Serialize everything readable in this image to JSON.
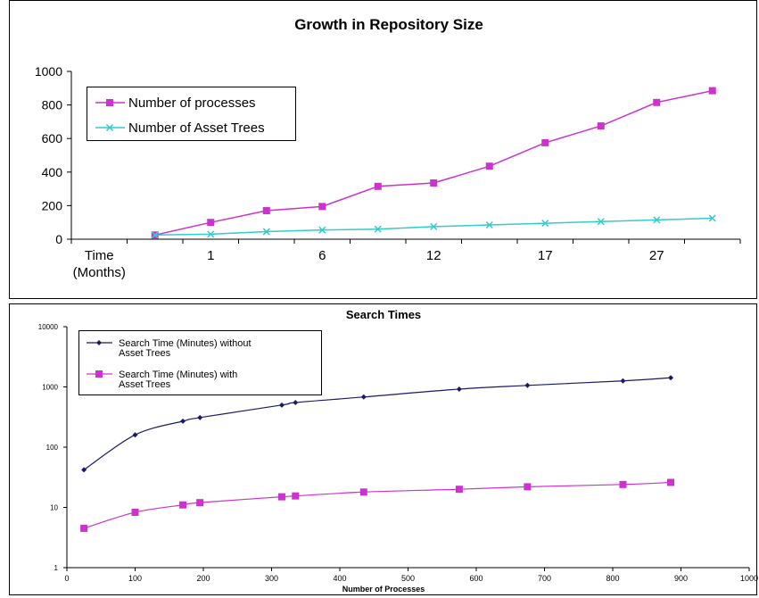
{
  "chart_data": [
    {
      "type": "line",
      "title": "Growth in Repository Size",
      "categories": [
        "Time (Months)",
        "",
        "1",
        "",
        "6",
        "",
        "12",
        "",
        "17",
        "",
        "27",
        ""
      ],
      "x_tick_labels": [
        {
          "index": 0,
          "lines": [
            "Time",
            "(Months)"
          ]
        },
        {
          "index": 2,
          "lines": [
            "1"
          ]
        },
        {
          "index": 4,
          "lines": [
            "6"
          ]
        },
        {
          "index": 6,
          "lines": [
            "12"
          ]
        },
        {
          "index": 8,
          "lines": [
            "17"
          ]
        },
        {
          "index": 10,
          "lines": [
            "27"
          ]
        }
      ],
      "ylim": [
        0,
        1000
      ],
      "y_ticks": [
        "0",
        "200",
        "400",
        "600",
        "800",
        "1000"
      ],
      "y_tick_values": [
        0,
        200,
        400,
        600,
        800,
        1000
      ],
      "grid": false,
      "legend_placement": "top-left",
      "series": [
        {
          "name": "Number of processes",
          "color": "#cc33cc",
          "marker": "square",
          "values": [
            null,
            25,
            100,
            170,
            195,
            315,
            335,
            435,
            575,
            675,
            815,
            885
          ]
        },
        {
          "name": "Number of Asset Trees",
          "color": "#33cccc",
          "marker": "x",
          "values": [
            null,
            25,
            30,
            45,
            55,
            60,
            75,
            85,
            95,
            105,
            115,
            125
          ]
        }
      ]
    },
    {
      "type": "scatter",
      "title": "Search Times",
      "xlabel": "Number of Processes",
      "xlim": [
        0,
        1000
      ],
      "x_ticks": [
        "0",
        "100",
        "200",
        "300",
        "400",
        "500",
        "600",
        "700",
        "800",
        "900",
        "1000"
      ],
      "x_tick_values": [
        0,
        100,
        200,
        300,
        400,
        500,
        600,
        700,
        800,
        900,
        1000
      ],
      "y_scale": "log",
      "ylim": [
        1,
        10000
      ],
      "y_ticks": [
        "1",
        "10",
        "100",
        "1000",
        "10000"
      ],
      "y_tick_values": [
        1,
        10,
        100,
        1000,
        10000
      ],
      "grid": false,
      "legend_placement": "top-left",
      "series": [
        {
          "name": "Search Time (Minutes) without Asset Trees",
          "name_lines": [
            "Search Time (Minutes) without",
            "Asset Trees"
          ],
          "color": "#1a1a66",
          "marker": "diamond",
          "x": [
            25,
            100,
            170,
            195,
            315,
            335,
            435,
            575,
            675,
            815,
            885
          ],
          "y": [
            42,
            160,
            270,
            310,
            500,
            550,
            680,
            920,
            1060,
            1260,
            1420
          ]
        },
        {
          "name": "Search Time (Minutes) with Asset Trees",
          "name_lines": [
            "Search Time (Minutes) with",
            "Asset Trees"
          ],
          "color": "#cc33cc",
          "marker": "square",
          "x": [
            25,
            100,
            170,
            195,
            315,
            335,
            435,
            575,
            675,
            815,
            885
          ],
          "y": [
            4.5,
            8.3,
            11,
            12,
            15,
            15.5,
            18,
            20,
            22,
            24,
            26
          ]
        }
      ]
    }
  ]
}
